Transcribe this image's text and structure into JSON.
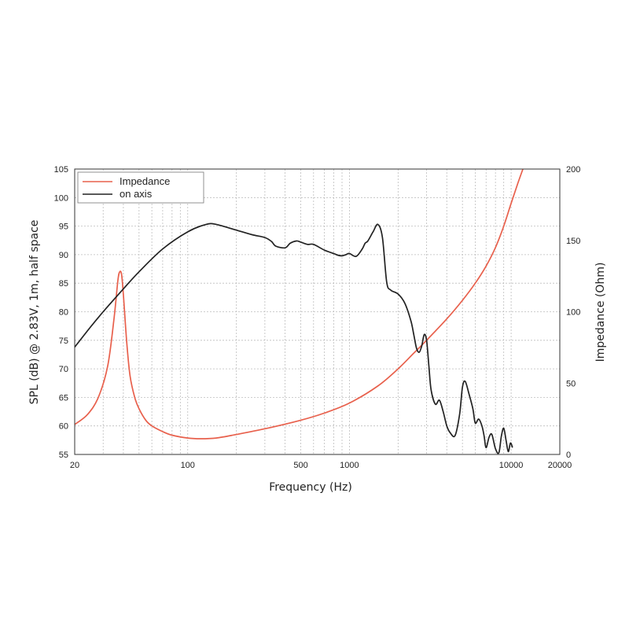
{
  "chart_data": {
    "type": "line",
    "xscale": "log",
    "xlim": [
      20,
      20000
    ],
    "x_ticks": [
      20,
      100,
      500,
      1000,
      10000,
      20000
    ],
    "x_tick_labels": [
      "20",
      "100",
      "500",
      "1000",
      "10000",
      "20000"
    ],
    "xlabel": "Frequency (Hz)",
    "ylabel": "SPL (dB) @ 2.83V, 1m, half space",
    "ylim": [
      55,
      105
    ],
    "y_ticks": [
      55,
      60,
      65,
      70,
      75,
      80,
      85,
      90,
      95,
      100,
      105
    ],
    "y_tick_labels": [
      "55",
      "60",
      "65",
      "70",
      "75",
      "80",
      "85",
      "90",
      "95",
      "100",
      "105"
    ],
    "y2label": "Impedance (Ohm)",
    "y2lim": [
      0,
      200
    ],
    "y2_ticks": [
      0,
      50,
      100,
      150,
      200
    ],
    "y2_tick_labels": [
      "0",
      "50",
      "100",
      "150",
      "200"
    ],
    "grid": true,
    "legend": "top-left",
    "series": [
      {
        "name": "Impedance",
        "axis": "right",
        "color": "#e8604c",
        "x": [
          20,
          24,
          28,
          32,
          35,
          37,
          38,
          39,
          40,
          42,
          44,
          47,
          50,
          55,
          60,
          70,
          80,
          100,
          120,
          150,
          200,
          300,
          500,
          700,
          1000,
          1500,
          2000,
          2500,
          3000,
          4000,
          5000,
          6000,
          7000,
          8000,
          9000,
          10000,
          11000,
          12000
        ],
        "y": [
          21,
          28,
          40,
          62,
          95,
          122,
          128,
          126,
          112,
          78,
          55,
          40,
          32,
          24,
          20,
          16,
          13.5,
          11.5,
          11,
          11.5,
          14,
          18,
          24,
          29,
          36,
          48,
          60,
          71,
          80,
          95,
          108,
          120,
          132,
          145,
          160,
          176,
          190,
          202
        ]
      },
      {
        "name": "on axis",
        "axis": "left",
        "color": "#222222",
        "x": [
          20,
          25,
          30,
          40,
          50,
          70,
          100,
          130,
          150,
          200,
          250,
          300,
          330,
          350,
          400,
          430,
          470,
          500,
          550,
          600,
          700,
          800,
          850,
          900,
          950,
          1000,
          1100,
          1200,
          1250,
          1300,
          1400,
          1500,
          1600,
          1700,
          1800,
          2000,
          2200,
          2400,
          2500,
          2600,
          2700,
          2800,
          2900,
          3000,
          3100,
          3200,
          3400,
          3600,
          3800,
          4000,
          4200,
          4500,
          4800,
          5000,
          5200,
          5500,
          5800,
          6000,
          6300,
          6600,
          6800,
          7000,
          7300,
          7600,
          8000,
          8400,
          8700,
          9000,
          9300,
          9600,
          9900,
          10200
        ],
        "y": [
          73.8,
          77.3,
          80.0,
          84.0,
          87.0,
          91.0,
          94.0,
          95.3,
          95.3,
          94.3,
          93.5,
          93.0,
          92.3,
          91.5,
          91.2,
          92.0,
          92.4,
          92.2,
          91.8,
          91.8,
          90.8,
          90.2,
          89.9,
          89.8,
          90.0,
          90.2,
          89.7,
          91.0,
          92.0,
          92.4,
          94.0,
          95.3,
          93.0,
          85.2,
          83.8,
          83.1,
          81.5,
          78.4,
          76.0,
          73.6,
          72.9,
          74.0,
          76.0,
          75.0,
          70.5,
          66.3,
          63.8,
          64.5,
          62.5,
          60.0,
          58.8,
          58.3,
          62.0,
          66.8,
          67.8,
          65.5,
          63.0,
          60.5,
          61.2,
          60.0,
          58.3,
          56.2,
          58.0,
          58.5,
          56.0,
          55.3,
          58.2,
          59.6,
          57.5,
          55.5,
          57.0,
          56.2
        ]
      }
    ]
  }
}
